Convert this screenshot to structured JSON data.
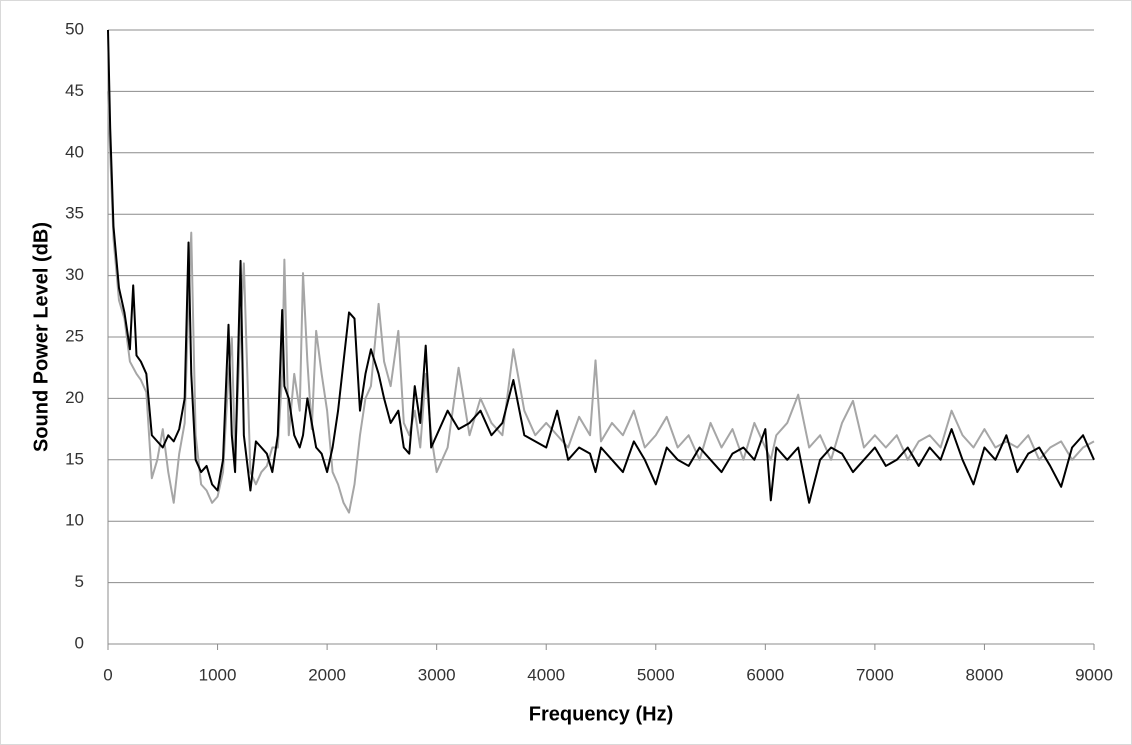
{
  "chart_data": {
    "type": "line",
    "x_label": "Frequency (Hz)",
    "y_label": "Sound Power Level (dB)",
    "x": [
      0,
      20,
      50,
      100,
      150,
      200,
      230,
      260,
      300,
      350,
      400,
      450,
      500,
      550,
      600,
      650,
      700,
      735,
      760,
      800,
      850,
      900,
      950,
      1000,
      1050,
      1100,
      1130,
      1160,
      1210,
      1240,
      1300,
      1350,
      1400,
      1450,
      1500,
      1550,
      1590,
      1610,
      1650,
      1700,
      1750,
      1780,
      1820,
      1860,
      1900,
      1950,
      2000,
      2050,
      2100,
      2150,
      2200,
      2250,
      2300,
      2350,
      2400,
      2470,
      2520,
      2580,
      2650,
      2700,
      2750,
      2800,
      2850,
      2900,
      2950,
      3000,
      3100,
      3200,
      3300,
      3400,
      3500,
      3600,
      3700,
      3800,
      3900,
      4000,
      4100,
      4200,
      4300,
      4400,
      4450,
      4500,
      4600,
      4700,
      4800,
      4900,
      5000,
      5100,
      5200,
      5300,
      5400,
      5500,
      5600,
      5700,
      5800,
      5900,
      6000,
      6050,
      6100,
      6200,
      6300,
      6400,
      6500,
      6600,
      6700,
      6800,
      6900,
      7000,
      7100,
      7200,
      7300,
      7400,
      7500,
      7600,
      7700,
      7800,
      7900,
      8000,
      8100,
      8200,
      8300,
      8400,
      8500,
      8600,
      8700,
      8800,
      8900,
      9000
    ],
    "series": [
      {
        "color": "#a6a6a6",
        "values": [
          45,
          40,
          33,
          28,
          26.5,
          23,
          22.5,
          22,
          21.5,
          20.5,
          13.5,
          15,
          17.5,
          14,
          11.5,
          15.5,
          18,
          28,
          33.5,
          17,
          13,
          12.5,
          11.5,
          12,
          14,
          22,
          25,
          15,
          26,
          31,
          14,
          13,
          14,
          14.5,
          16,
          16,
          22,
          31.3,
          17,
          22,
          19,
          30.2,
          23,
          17.5,
          25.5,
          22,
          19,
          14,
          13,
          11.5,
          10.7,
          13,
          17,
          20,
          21,
          27.7,
          23,
          21,
          25.5,
          18,
          17,
          19,
          16,
          22,
          17,
          14,
          16,
          22.5,
          17,
          20,
          18,
          17,
          24,
          19,
          17,
          18,
          17,
          16,
          18.5,
          17,
          23.1,
          16.5,
          18,
          17,
          19,
          16,
          17,
          18.5,
          16,
          17,
          15,
          18,
          16,
          17.5,
          15,
          18,
          16,
          15,
          17,
          18,
          20.3,
          16,
          17,
          15,
          18,
          19.8,
          16,
          17,
          16,
          17,
          15,
          16.5,
          17,
          16,
          19,
          17,
          16,
          17.5,
          16,
          16.5,
          16,
          17,
          15,
          16,
          16.5,
          15,
          16,
          16.5
        ]
      },
      {
        "color": "#000000",
        "values": [
          50,
          42,
          34,
          29,
          27,
          24,
          29.2,
          23.5,
          23,
          22,
          17,
          16.5,
          16,
          17,
          16.5,
          17.5,
          20,
          32.7,
          22,
          15,
          14,
          14.5,
          13,
          12.5,
          15,
          26,
          17,
          14,
          31.2,
          17,
          12.5,
          16.5,
          16,
          15.5,
          14,
          17,
          27.2,
          21,
          20,
          17,
          16,
          17,
          20,
          18,
          16,
          15.5,
          14,
          16,
          19,
          23,
          27,
          26.5,
          19,
          22,
          24,
          22,
          20,
          18,
          19,
          16,
          15.5,
          21,
          18,
          24.3,
          16,
          17,
          19,
          17.5,
          18,
          19,
          17,
          18,
          21.5,
          17,
          16.5,
          16,
          19,
          15,
          16,
          15.5,
          14,
          16,
          15,
          14,
          16.5,
          15,
          13,
          16,
          15,
          14.5,
          16,
          15,
          14,
          15.5,
          16,
          15,
          17.5,
          11.7,
          16,
          15,
          16,
          11.5,
          15,
          16,
          15.5,
          14,
          15,
          16,
          14.5,
          15,
          16,
          14.5,
          16,
          15,
          17.5,
          15,
          13,
          16,
          15,
          17,
          14,
          15.5,
          16,
          14.5,
          12.8,
          16,
          17,
          15
        ]
      }
    ],
    "xlim": [
      0,
      9000
    ],
    "xticks": [
      0,
      1000,
      2000,
      3000,
      4000,
      5000,
      6000,
      7000,
      8000,
      9000
    ],
    "ylim": [
      0,
      50
    ],
    "yticks": [
      0,
      5,
      10,
      15,
      20,
      25,
      30,
      35,
      40,
      45,
      50
    ],
    "grid": true
  }
}
